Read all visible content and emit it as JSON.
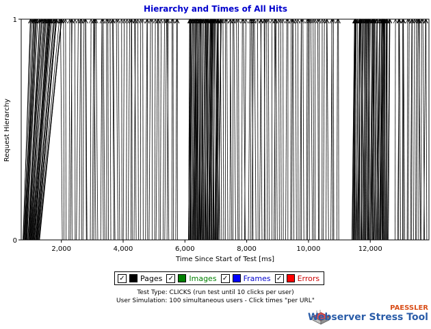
{
  "chart_data": {
    "type": "line",
    "title": "Hierarchy and Times of All Hits",
    "xlabel": "Time Since Start of Test [ms]",
    "ylabel": "Request Hierarchy",
    "xlim": [
      700,
      13900
    ],
    "ylim": [
      0,
      1
    ],
    "x_ticks": [
      "2,000",
      "4,000",
      "6,000",
      "8,000",
      "10,000",
      "12,000"
    ],
    "x_tick_values": [
      2000,
      4000,
      6000,
      8000,
      10000,
      12000
    ],
    "y_ticks": [
      "0",
      "1"
    ],
    "y_tick_values": [
      0,
      1
    ],
    "grid": false,
    "legend_position": "bottom",
    "series": [
      {
        "name": "Pages",
        "color": "#000000",
        "clusters": [
          {
            "start_range": [
              750,
              1300
            ],
            "end_range": [
              1000,
              2000
            ],
            "count": 40
          },
          {
            "start_range": [
              2000,
              5800
            ],
            "end_range": [
              2000,
              5800
            ],
            "count": 55
          },
          {
            "start_range": [
              6100,
              7100
            ],
            "end_range": [
              6150,
              7150
            ],
            "count": 60
          },
          {
            "start_range": [
              7100,
              11000
            ],
            "end_range": [
              7100,
              11000
            ],
            "count": 60
          },
          {
            "start_range": [
              11400,
              12600
            ],
            "end_range": [
              11450,
              12650
            ],
            "count": 60
          },
          {
            "start_range": [
              12800,
              13850
            ],
            "end_range": [
              12800,
              13850
            ],
            "count": 20
          }
        ]
      }
    ]
  },
  "legend": {
    "items": [
      {
        "label": "Pages",
        "color": "#000000",
        "text_color": "#000000",
        "checked": "✓"
      },
      {
        "label": "Images",
        "color": "#008000",
        "text_color": "#008000",
        "checked": "✓"
      },
      {
        "label": "Frames",
        "color": "#0000ff",
        "text_color": "#0000cc",
        "checked": "✓"
      },
      {
        "label": "Errors",
        "color": "#ff0000",
        "text_color": "#cc0000",
        "checked": "✓"
      }
    ]
  },
  "info": {
    "line1": "Test Type: CLICKS (run test until 10 clicks per user)",
    "line2": "User Simulation: 100 simultaneous users - Click times \"per URL\""
  },
  "brand": {
    "company": "PAESSLER",
    "product": "Webserver Stress Tool"
  }
}
